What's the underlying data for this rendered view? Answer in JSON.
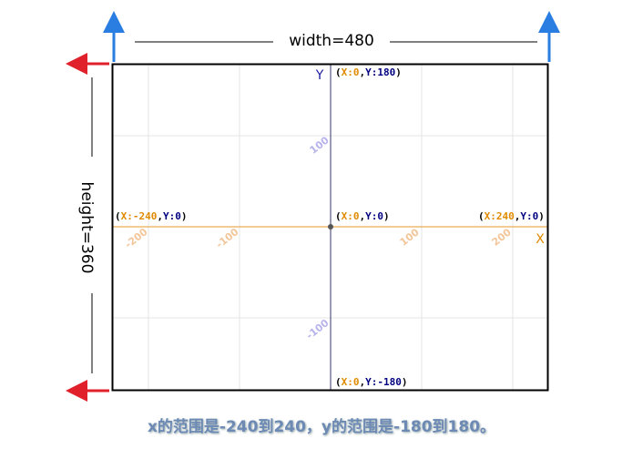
{
  "width_label": "width=480",
  "height_label": "height=360",
  "axes": {
    "y_name": "Y",
    "x_name": "X"
  },
  "points": [
    {
      "parts": [
        "(",
        "X:0",
        ",",
        "Y:180",
        ")"
      ]
    },
    {
      "parts": [
        "(",
        "X:-240",
        ",",
        "Y:0",
        ")"
      ]
    },
    {
      "parts": [
        "(",
        "X:0",
        ",",
        "Y:0",
        ")"
      ]
    },
    {
      "parts": [
        "(",
        "X:240",
        ",",
        "Y:0",
        ")"
      ]
    },
    {
      "parts": [
        "(",
        "X:0",
        ",",
        "Y:-180",
        ")"
      ]
    }
  ],
  "x_ticks": [
    "-200",
    "-100",
    "100",
    "200"
  ],
  "y_ticks": [
    "100",
    "-100"
  ],
  "caption": "x的范围是-240到240，y的范围是-180到180。"
}
